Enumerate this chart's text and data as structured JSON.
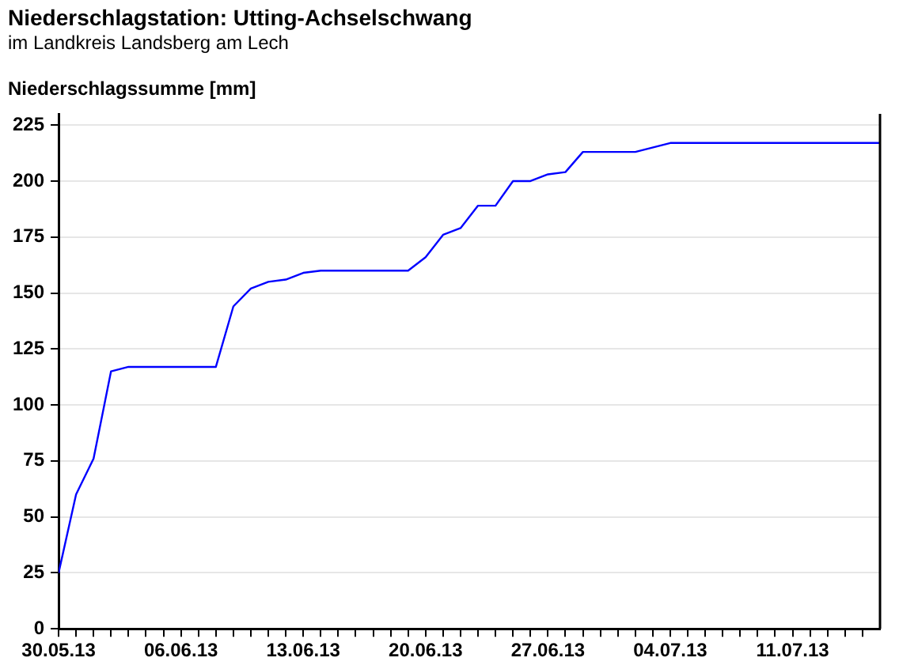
{
  "chart_data": {
    "type": "line",
    "title": "Niederschlagstation: Utting-Achselschwang",
    "subtitle": "im Landkreis Landsberg am Lech",
    "ylabel": "Niederschlagssumme [mm]",
    "x": [
      "--05-30",
      "--05-31",
      "--06-01",
      "--06-02",
      "--06-03",
      "--06-08",
      "--06-09",
      "--06-10",
      "--06-11",
      "--06-12",
      "--06-13",
      "--06-14",
      "--06-19",
      "--06-20",
      "--06-21",
      "--06-22",
      "--06-23",
      "--06-24",
      "--06-25",
      "--06-26",
      "--06-27",
      "--06-28",
      "--06-29",
      "--07-02",
      "--07-04",
      "--07-16"
    ],
    "series": [
      {
        "color": "#0000ff",
        "values": [
          25,
          60,
          76,
          115,
          117,
          117,
          144,
          152,
          155,
          156,
          159,
          160,
          160,
          166,
          176,
          179,
          189,
          189,
          200,
          200,
          203,
          204,
          213,
          213,
          217,
          217
        ]
      }
    ],
    "xlim": [
      "--05-30",
      "--07-16"
    ],
    "xticks": [
      {
        "value": "--05-30",
        "label": "30.05.13"
      },
      {
        "value": "--05-31",
        "label": null
      },
      {
        "value": "--06-01",
        "label": null
      },
      {
        "value": "--06-02",
        "label": null
      },
      {
        "value": "--06-03",
        "label": null
      },
      {
        "value": "--06-04",
        "label": null
      },
      {
        "value": "--06-05",
        "label": null
      },
      {
        "value": "--06-06",
        "label": "06.06.13"
      },
      {
        "value": "--06-07",
        "label": null
      },
      {
        "value": "--06-08",
        "label": null
      },
      {
        "value": "--06-09",
        "label": null
      },
      {
        "value": "--06-10",
        "label": null
      },
      {
        "value": "--06-11",
        "label": null
      },
      {
        "value": "--06-12",
        "label": null
      },
      {
        "value": "--06-13",
        "label": "13.06.13"
      },
      {
        "value": "--06-14",
        "label": null
      },
      {
        "value": "--06-15",
        "label": null
      },
      {
        "value": "--06-16",
        "label": null
      },
      {
        "value": "--06-17",
        "label": null
      },
      {
        "value": "--06-18",
        "label": null
      },
      {
        "value": "--06-19",
        "label": null
      },
      {
        "value": "--06-20",
        "label": "20.06.13"
      },
      {
        "value": "--06-21",
        "label": null
      },
      {
        "value": "--06-22",
        "label": null
      },
      {
        "value": "--06-23",
        "label": null
      },
      {
        "value": "--06-24",
        "label": null
      },
      {
        "value": "--06-25",
        "label": null
      },
      {
        "value": "--06-26",
        "label": null
      },
      {
        "value": "--06-27",
        "label": "27.06.13"
      },
      {
        "value": "--06-28",
        "label": null
      },
      {
        "value": "--06-29",
        "label": null
      },
      {
        "value": "--06-30",
        "label": null
      },
      {
        "value": "--07-01",
        "label": null
      },
      {
        "value": "--07-02",
        "label": null
      },
      {
        "value": "--07-03",
        "label": null
      },
      {
        "value": "--07-04",
        "label": "04.07.13"
      },
      {
        "value": "--07-05",
        "label": null
      },
      {
        "value": "--07-06",
        "label": null
      },
      {
        "value": "--07-07",
        "label": null
      },
      {
        "value": "--07-08",
        "label": null
      },
      {
        "value": "--07-09",
        "label": null
      },
      {
        "value": "--07-10",
        "label": null
      },
      {
        "value": "--07-11",
        "label": "11.07.13"
      },
      {
        "value": "--07-12",
        "label": null
      },
      {
        "value": "--07-13",
        "label": null
      },
      {
        "value": "--07-14",
        "label": null
      },
      {
        "value": "--07-15",
        "label": null
      }
    ],
    "ylim": [
      0,
      230
    ],
    "yticks": [
      0,
      25,
      50,
      75,
      100,
      125,
      150,
      175,
      200,
      225
    ],
    "grid": "y",
    "legend": false,
    "marker": "none",
    "line_style": "solid"
  }
}
